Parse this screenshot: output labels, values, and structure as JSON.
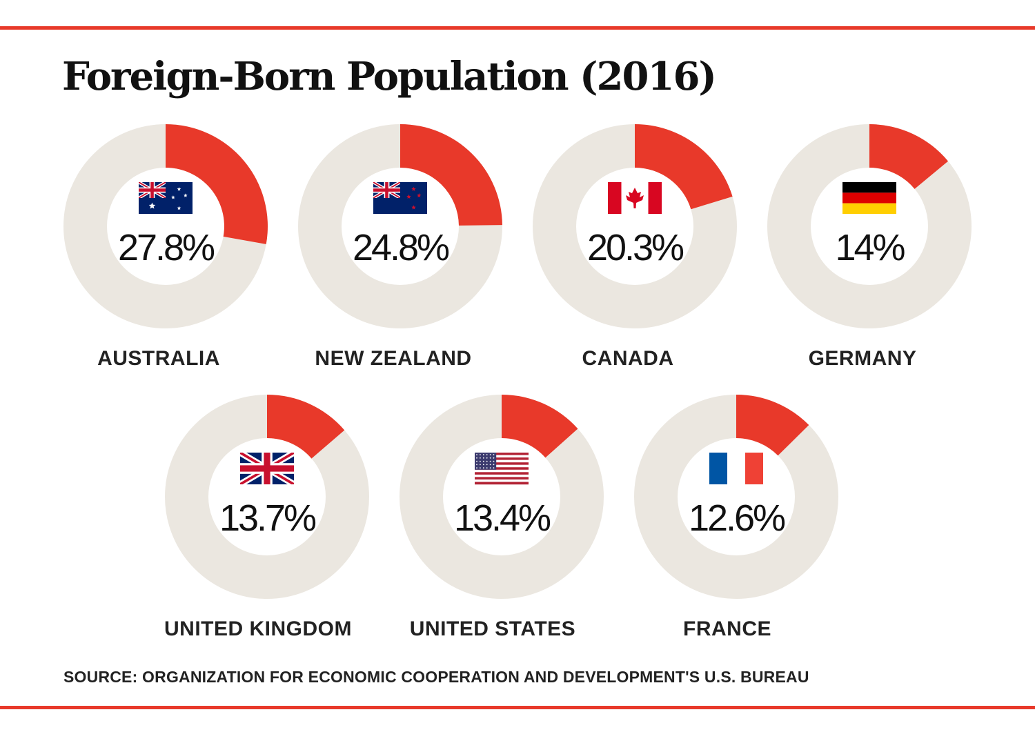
{
  "colors": {
    "accent": "#e8392a",
    "track": "#ebe7e0",
    "rule": "#e8392a"
  },
  "chart_data": {
    "type": "donut",
    "title": "Foreign-Born Population (2016)",
    "unit": "%",
    "items": [
      {
        "country": "AUSTRALIA",
        "value": 27.8,
        "label": "27.8%",
        "flag": "australia-flag-icon"
      },
      {
        "country": "NEW ZEALAND",
        "value": 24.8,
        "label": "24.8%",
        "flag": "new-zealand-flag-icon"
      },
      {
        "country": "CANADA",
        "value": 20.3,
        "label": "20.3%",
        "flag": "canada-flag-icon"
      },
      {
        "country": "GERMANY",
        "value": 14,
        "label": "14%",
        "flag": "germany-flag-icon"
      },
      {
        "country": "UNITED KINGDOM",
        "value": 13.7,
        "label": "13.7%",
        "flag": "united-kingdom-flag-icon"
      },
      {
        "country": "UNITED STATES",
        "value": 13.4,
        "label": "13.4%",
        "flag": "united-states-flag-icon"
      },
      {
        "country": "FRANCE",
        "value": 12.6,
        "label": "12.6%",
        "flag": "france-flag-icon"
      }
    ],
    "source": "SOURCE: ORGANIZATION FOR ECONOMIC COOPERATION AND DEVELOPMENT'S U.S. BUREAU"
  }
}
